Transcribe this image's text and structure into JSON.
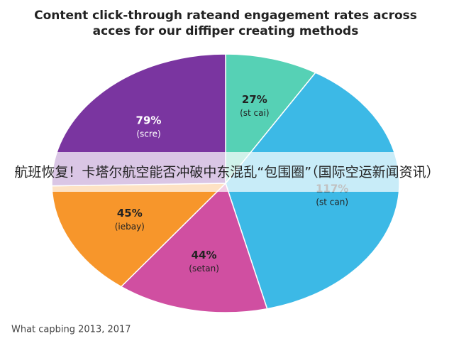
{
  "chart_data": {
    "type": "pie",
    "title": [
      "Content click-through rateand engagement rates across",
      "acces for our diffiper creating methods"
    ],
    "categories": [
      "(st cai)",
      "(st can)",
      "(setan)",
      "(iebay)",
      "(scre)"
    ],
    "values": [
      27,
      117,
      44,
      45,
      79
    ],
    "value_labels": [
      "27%",
      "117%",
      "44%",
      "45%",
      "79%"
    ],
    "colors": [
      "#56d1b5",
      "#3cb9e6",
      "#d04fa1",
      "#f7962b",
      "#7a35a0"
    ],
    "footer": "What capbing 2013, 2017",
    "banner": "航班恢复！卡塔尔航空能否冲破中东混乱“包围圈”（国际空运新闻资讯）"
  }
}
